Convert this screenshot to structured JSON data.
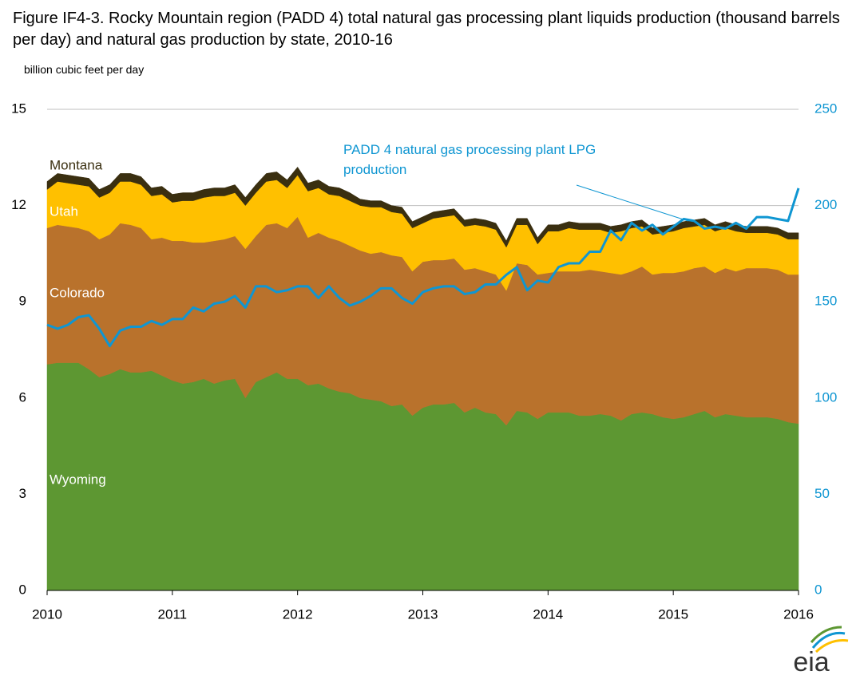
{
  "logo": "eia",
  "chart_data": {
    "type": "area",
    "title": "Figure IF4-3. Rocky Mountain region (PADD 4) total natural gas processing plant liquids production (thousand barrels per day) and natural gas production by state, 2010-16",
    "y_label": "billion cubic feet per day",
    "categories": [
      "2010",
      null,
      null,
      null,
      null,
      null,
      null,
      null,
      null,
      null,
      null,
      null,
      "2011",
      null,
      null,
      null,
      null,
      null,
      null,
      null,
      null,
      null,
      null,
      null,
      "2012",
      null,
      null,
      null,
      null,
      null,
      null,
      null,
      null,
      null,
      null,
      null,
      "2013",
      null,
      null,
      null,
      null,
      null,
      null,
      null,
      null,
      null,
      null,
      null,
      "2014",
      null,
      null,
      null,
      null,
      null,
      null,
      null,
      null,
      null,
      null,
      null,
      "2015",
      null,
      null,
      null,
      null,
      null,
      null,
      null,
      null,
      null,
      null,
      null,
      "2016"
    ],
    "ylim": [
      0,
      15
    ],
    "yticks": [
      0,
      3,
      6,
      9,
      12,
      15
    ],
    "y2lim": [
      0,
      250
    ],
    "y2ticks": [
      0,
      50,
      100,
      150,
      200,
      250
    ],
    "grid": true,
    "series": [
      {
        "name": "Wyoming",
        "color": "#5d9732",
        "values": [
          7.05,
          7.1,
          7.1,
          7.1,
          6.9,
          6.65,
          6.75,
          6.9,
          6.8,
          6.8,
          6.85,
          6.7,
          6.55,
          6.45,
          6.5,
          6.6,
          6.45,
          6.55,
          6.6,
          6.0,
          6.5,
          6.65,
          6.8,
          6.6,
          6.6,
          6.4,
          6.45,
          6.3,
          6.2,
          6.15,
          6.0,
          5.95,
          5.9,
          5.75,
          5.8,
          5.45,
          5.7,
          5.8,
          5.8,
          5.85,
          5.55,
          5.7,
          5.55,
          5.5,
          5.15,
          5.6,
          5.55,
          5.35,
          5.55,
          5.55,
          5.55,
          5.45,
          5.45,
          5.5,
          5.45,
          5.3,
          5.5,
          5.55,
          5.5,
          5.4,
          5.35,
          5.4,
          5.5,
          5.6,
          5.4,
          5.5,
          5.45,
          5.4,
          5.4,
          5.4,
          5.35,
          5.25,
          5.2
        ]
      },
      {
        "name": "Colorado",
        "color": "#b9722c",
        "values": [
          4.25,
          4.3,
          4.25,
          4.2,
          4.3,
          4.3,
          4.35,
          4.55,
          4.6,
          4.5,
          4.1,
          4.3,
          4.35,
          4.45,
          4.35,
          4.25,
          4.45,
          4.4,
          4.45,
          4.65,
          4.55,
          4.75,
          4.65,
          4.7,
          5.05,
          4.6,
          4.7,
          4.7,
          4.7,
          4.6,
          4.6,
          4.55,
          4.65,
          4.7,
          4.6,
          4.5,
          4.55,
          4.5,
          4.5,
          4.5,
          4.45,
          4.35,
          4.4,
          4.35,
          4.2,
          4.6,
          4.6,
          4.5,
          4.35,
          4.4,
          4.4,
          4.5,
          4.55,
          4.45,
          4.45,
          4.55,
          4.45,
          4.55,
          4.35,
          4.5,
          4.55,
          4.55,
          4.55,
          4.5,
          4.5,
          4.55,
          4.5,
          4.65,
          4.65,
          4.65,
          4.65,
          4.6,
          4.65
        ]
      },
      {
        "name": "Utah",
        "color": "#ffc000",
        "values": [
          1.2,
          1.35,
          1.35,
          1.35,
          1.4,
          1.3,
          1.3,
          1.3,
          1.35,
          1.35,
          1.35,
          1.35,
          1.2,
          1.25,
          1.3,
          1.4,
          1.4,
          1.35,
          1.35,
          1.35,
          1.35,
          1.35,
          1.35,
          1.25,
          1.3,
          1.45,
          1.4,
          1.35,
          1.4,
          1.4,
          1.4,
          1.45,
          1.4,
          1.35,
          1.35,
          1.35,
          1.2,
          1.3,
          1.35,
          1.35,
          1.35,
          1.35,
          1.4,
          1.4,
          1.35,
          1.2,
          1.25,
          0.95,
          1.3,
          1.25,
          1.35,
          1.3,
          1.25,
          1.3,
          1.25,
          1.35,
          1.35,
          1.25,
          1.25,
          1.25,
          1.3,
          1.35,
          1.3,
          1.3,
          1.3,
          1.25,
          1.25,
          1.1,
          1.1,
          1.1,
          1.1,
          1.1,
          1.1
        ]
      },
      {
        "name": "Montana",
        "color": "#3a2f10",
        "values": [
          0.25,
          0.25,
          0.25,
          0.25,
          0.25,
          0.25,
          0.25,
          0.25,
          0.25,
          0.25,
          0.25,
          0.25,
          0.25,
          0.25,
          0.25,
          0.25,
          0.25,
          0.25,
          0.25,
          0.25,
          0.25,
          0.25,
          0.25,
          0.25,
          0.25,
          0.25,
          0.25,
          0.25,
          0.25,
          0.25,
          0.2,
          0.2,
          0.2,
          0.2,
          0.2,
          0.2,
          0.2,
          0.2,
          0.2,
          0.2,
          0.2,
          0.2,
          0.2,
          0.2,
          0.2,
          0.2,
          0.2,
          0.2,
          0.2,
          0.2,
          0.2,
          0.2,
          0.2,
          0.2,
          0.2,
          0.2,
          0.2,
          0.2,
          0.2,
          0.2,
          0.2,
          0.2,
          0.2,
          0.2,
          0.2,
          0.2,
          0.2,
          0.2,
          0.2,
          0.2,
          0.2,
          0.2,
          0.2
        ]
      },
      {
        "name": "PADD 4 natural gas processing plant LPG production",
        "color": "#0f96d2",
        "axis": "y2",
        "values": [
          138,
          136,
          138,
          142,
          143,
          136,
          127,
          135,
          137,
          137,
          140,
          138,
          141,
          141,
          147,
          145,
          149,
          150,
          153,
          147,
          158,
          158,
          155,
          156,
          158,
          158,
          152,
          158,
          152,
          148,
          150,
          153,
          157,
          157,
          152,
          149,
          155,
          157,
          158,
          158,
          154,
          155,
          159,
          159,
          164,
          168,
          156,
          161,
          160,
          168,
          170,
          170,
          176,
          176,
          187,
          182,
          191,
          187,
          190,
          185,
          189,
          193,
          192,
          188,
          189,
          188,
          191,
          188,
          194,
          194,
          193,
          192,
          209
        ]
      }
    ]
  }
}
